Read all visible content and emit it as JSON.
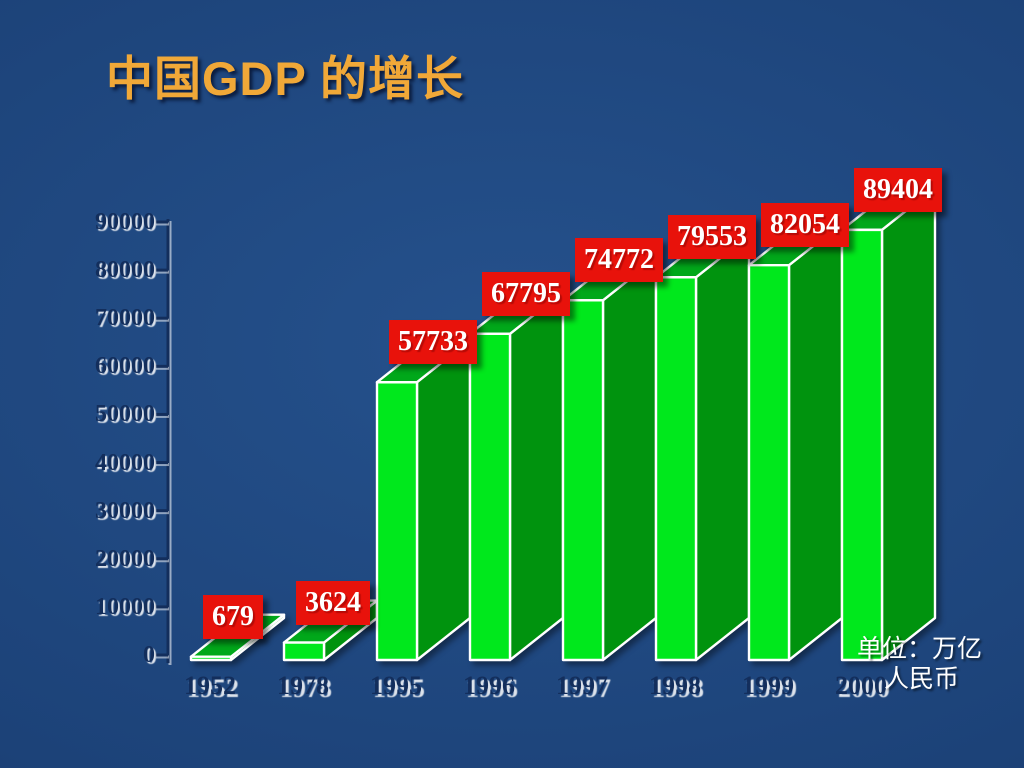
{
  "title": {
    "text": "中国GDP 的增长"
  },
  "unit_note": {
    "line1": "单位：万亿",
    "line2": "人民币"
  },
  "colors": {
    "background_center": "#25518C",
    "background_mid": "#1C4278",
    "background_edge": "#163566",
    "title": "#F0A838",
    "axis_text": "#132E5C",
    "axis_line": "#132E5C",
    "bar_front": "#00E81C",
    "bar_top": "#00A81A",
    "bar_side": "#00930E",
    "bar_outline": "#FFFFFF",
    "value_box_bg": "#E8120B",
    "value_box_text": "#FFFFFF",
    "unit_text": "#FFFFFF"
  },
  "chart_data": {
    "type": "bar",
    "projection": "3d",
    "title": "中国GDP 的增长",
    "categories": [
      "1952",
      "1978",
      "1995",
      "1996",
      "1997",
      "1998",
      "1999",
      "2000"
    ],
    "values": [
      679,
      3624,
      57733,
      67795,
      74772,
      79553,
      82054,
      89404
    ],
    "value_labels": [
      "679",
      "3624",
      "57733",
      "67795",
      "74772",
      "79553",
      "82054",
      "89404"
    ],
    "xlabel": "",
    "ylabel": "",
    "unit_label": "单位：万亿人民币",
    "ylim": [
      0,
      90000
    ],
    "ytick_step": 10000,
    "yticks": [
      0,
      10000,
      20000,
      30000,
      40000,
      50000,
      60000,
      70000,
      80000,
      90000
    ],
    "grid": false,
    "legend": null
  }
}
